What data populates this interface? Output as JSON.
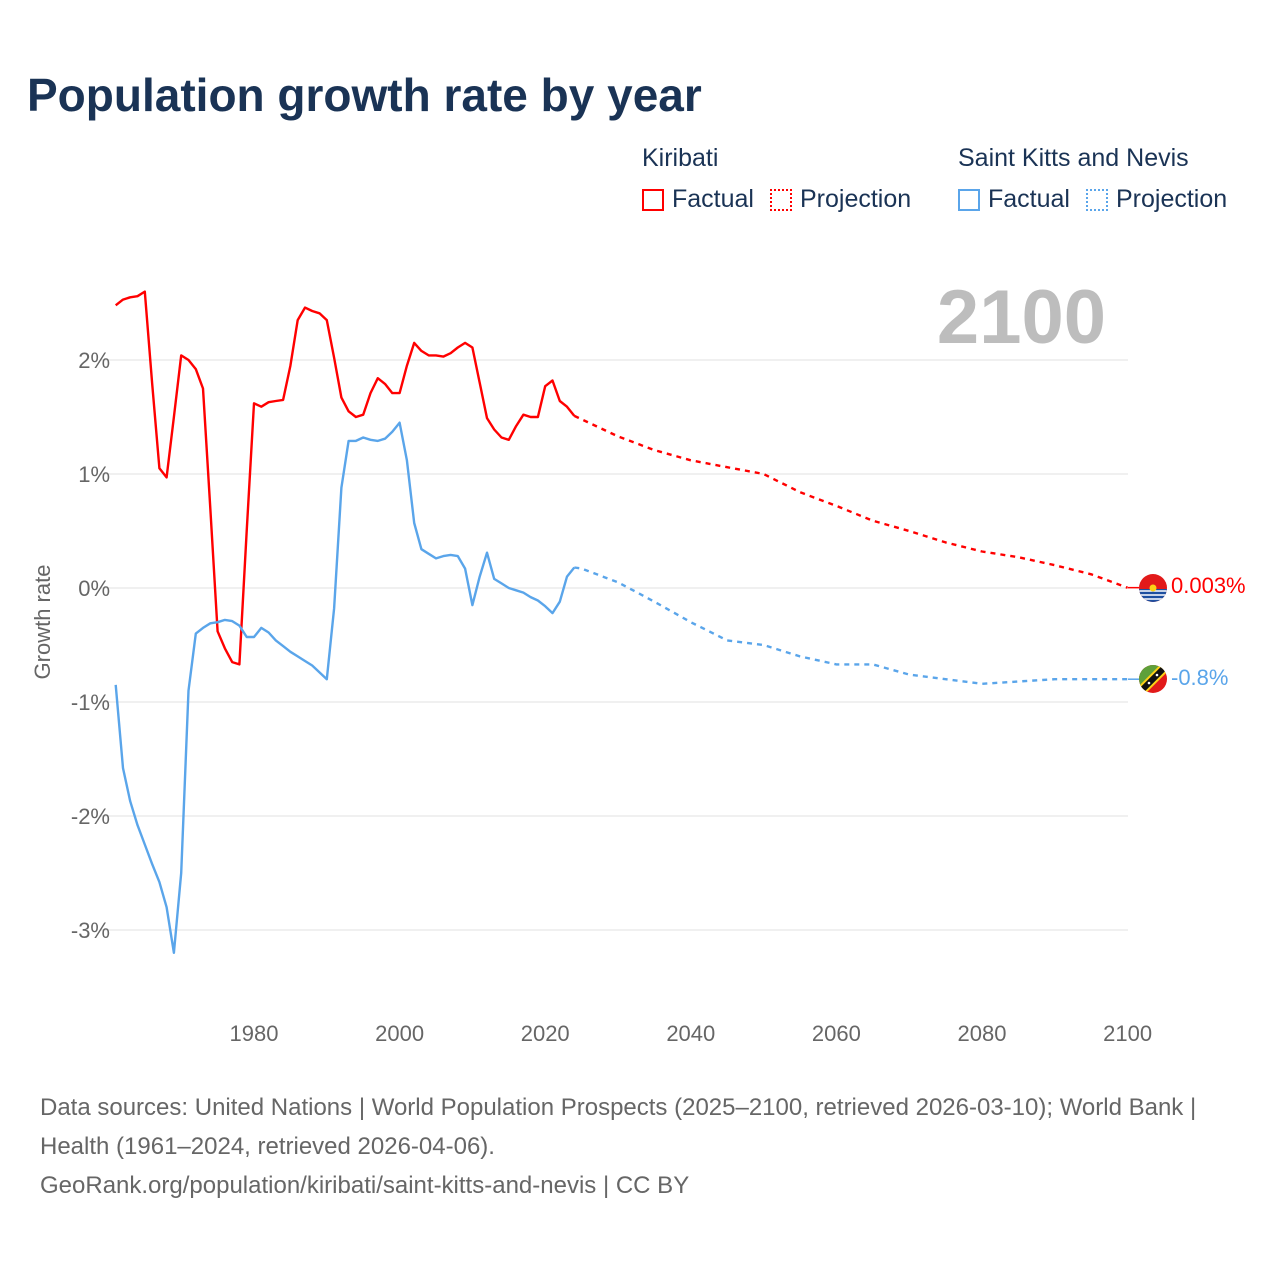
{
  "title": "Population growth rate by year",
  "legend": {
    "groups": [
      {
        "name": "Kiribati",
        "color": "#ff0000",
        "items": [
          "Factual",
          "Projection"
        ]
      },
      {
        "name": "Saint Kitts and Nevis",
        "color": "#5aa5ea",
        "items": [
          "Factual",
          "Projection"
        ]
      }
    ]
  },
  "current_year": "2100",
  "end_labels": {
    "kiribati": "0.003%",
    "skn": "-0.8%"
  },
  "flags": {
    "kiribati": "kiribati-flag-icon",
    "skn": "saint-kitts-and-nevis-flag-icon"
  },
  "footer": {
    "sources": "Data sources: United Nations | World Population Prospects (2025–2100, retrieved 2026-03-10); World Bank | Health (1961–2024, retrieved 2026-04-06).",
    "url": "GeoRank.org/population/kiribati/saint-kitts-and-nevis | CC BY"
  },
  "chart_data": {
    "type": "line",
    "title": "Population growth rate by year",
    "xlabel": "",
    "ylabel": "Growth rate",
    "xlim": [
      1961,
      2100
    ],
    "ylim": [
      -3.5,
      2.8
    ],
    "x_ticks": [
      1980,
      2000,
      2020,
      2040,
      2060,
      2080,
      2100
    ],
    "y_ticks": [
      2,
      1,
      0,
      -1,
      -2,
      -3
    ],
    "y_tick_labels": [
      "2%",
      "1%",
      "0%",
      "-1%",
      "-2%",
      "-3%"
    ],
    "grid": true,
    "legend_position": "top-right",
    "series": [
      {
        "name": "Kiribati Factual",
        "color": "#ff0000",
        "dashed": false,
        "x": [
          1961,
          1962,
          1963,
          1964,
          1965,
          1966,
          1967,
          1968,
          1969,
          1970,
          1971,
          1972,
          1973,
          1974,
          1975,
          1976,
          1977,
          1978,
          1979,
          1980,
          1981,
          1982,
          1983,
          1984,
          1985,
          1986,
          1987,
          1988,
          1989,
          1990,
          1991,
          1992,
          1993,
          1994,
          1995,
          1996,
          1997,
          1998,
          1999,
          2000,
          2001,
          2002,
          2003,
          2004,
          2005,
          2006,
          2007,
          2008,
          2009,
          2010,
          2011,
          2012,
          2013,
          2014,
          2015,
          2016,
          2017,
          2018,
          2019,
          2020,
          2021,
          2022,
          2023,
          2024
        ],
        "y": [
          2.48,
          2.53,
          2.55,
          2.56,
          2.6,
          1.8,
          1.05,
          0.97,
          1.5,
          2.04,
          2.0,
          1.92,
          1.75,
          0.7,
          -0.38,
          -0.53,
          -0.65,
          -0.67,
          0.5,
          1.62,
          1.59,
          1.63,
          1.64,
          1.65,
          1.95,
          2.35,
          2.46,
          2.43,
          2.41,
          2.35,
          2.02,
          1.67,
          1.55,
          1.5,
          1.52,
          1.71,
          1.84,
          1.79,
          1.71,
          1.71,
          1.95,
          2.15,
          2.08,
          2.04,
          2.04,
          2.03,
          2.06,
          2.11,
          2.15,
          2.11,
          1.8,
          1.49,
          1.39,
          1.32,
          1.3,
          1.42,
          1.52,
          1.5,
          1.5,
          1.77,
          1.82,
          1.64,
          1.59,
          1.51
        ]
      },
      {
        "name": "Kiribati Projection",
        "color": "#ff0000",
        "dashed": true,
        "x": [
          2024,
          2025,
          2030,
          2035,
          2040,
          2045,
          2050,
          2055,
          2060,
          2065,
          2070,
          2075,
          2080,
          2085,
          2090,
          2095,
          2100
        ],
        "y": [
          1.51,
          1.48,
          1.33,
          1.21,
          1.12,
          1.06,
          1.0,
          0.84,
          0.72,
          0.59,
          0.5,
          0.4,
          0.32,
          0.27,
          0.2,
          0.12,
          0.003
        ]
      },
      {
        "name": "Saint Kitts and Nevis Factual",
        "color": "#5aa5ea",
        "dashed": false,
        "x": [
          1961,
          1962,
          1963,
          1964,
          1965,
          1966,
          1967,
          1968,
          1969,
          1970,
          1971,
          1972,
          1973,
          1974,
          1975,
          1976,
          1977,
          1978,
          1979,
          1980,
          1981,
          1982,
          1983,
          1984,
          1985,
          1986,
          1987,
          1988,
          1989,
          1990,
          1991,
          1992,
          1993,
          1994,
          1995,
          1996,
          1997,
          1998,
          1999,
          2000,
          2001,
          2002,
          2003,
          2004,
          2005,
          2006,
          2007,
          2008,
          2009,
          2010,
          2011,
          2012,
          2013,
          2014,
          2015,
          2016,
          2017,
          2018,
          2019,
          2020,
          2021,
          2022,
          2023,
          2024
        ],
        "y": [
          -0.85,
          -1.58,
          -1.87,
          -2.08,
          -2.25,
          -2.42,
          -2.58,
          -2.8,
          -3.2,
          -2.5,
          -0.9,
          -0.4,
          -0.35,
          -0.31,
          -0.3,
          -0.28,
          -0.29,
          -0.33,
          -0.43,
          -0.43,
          -0.35,
          -0.39,
          -0.46,
          -0.51,
          -0.56,
          -0.6,
          -0.64,
          -0.68,
          -0.74,
          -0.8,
          -0.18,
          0.88,
          1.29,
          1.29,
          1.32,
          1.3,
          1.29,
          1.31,
          1.37,
          1.45,
          1.12,
          0.57,
          0.34,
          0.3,
          0.26,
          0.28,
          0.29,
          0.28,
          0.17,
          -0.15,
          0.1,
          0.31,
          0.08,
          0.04,
          0.0,
          -0.02,
          -0.04,
          -0.08,
          -0.11,
          -0.16,
          -0.22,
          -0.12,
          0.1,
          0.18
        ]
      },
      {
        "name": "Saint Kitts and Nevis Projection",
        "color": "#5aa5ea",
        "dashed": true,
        "x": [
          2024,
          2025,
          2030,
          2035,
          2040,
          2045,
          2050,
          2055,
          2060,
          2065,
          2070,
          2075,
          2080,
          2085,
          2090,
          2095,
          2100
        ],
        "y": [
          0.18,
          0.17,
          0.05,
          -0.12,
          -0.3,
          -0.46,
          -0.5,
          -0.6,
          -0.67,
          -0.67,
          -0.76,
          -0.8,
          -0.84,
          -0.82,
          -0.8,
          -0.8,
          -0.8
        ]
      }
    ]
  }
}
